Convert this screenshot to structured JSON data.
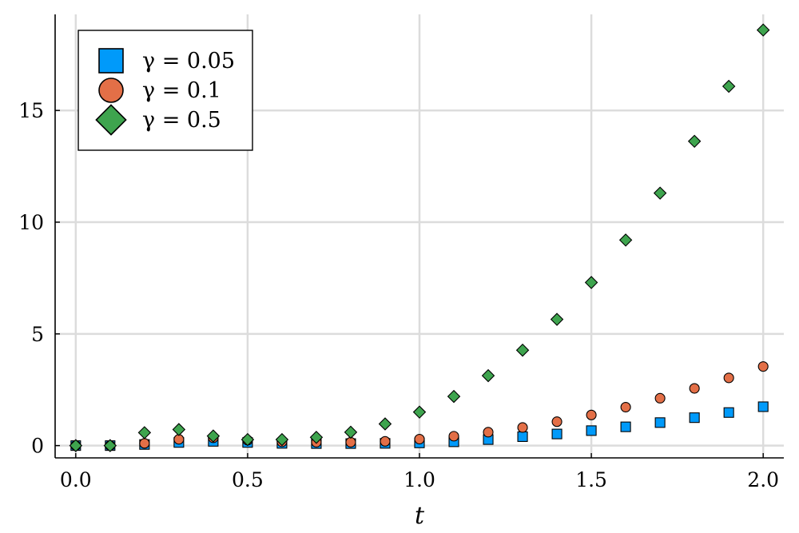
{
  "chart_data": {
    "type": "scatter",
    "title": "",
    "xlabel": "t",
    "ylabel": "",
    "xlim": [
      -0.06,
      2.06
    ],
    "ylim": [
      -0.55,
      19.3
    ],
    "xticks": [
      0.0,
      0.5,
      1.0,
      1.5,
      2.0
    ],
    "xtick_labels": [
      "0.0",
      "0.5",
      "1.0",
      "1.5",
      "2.0"
    ],
    "yticks": [
      0,
      5,
      10,
      15
    ],
    "ytick_labels": [
      "0",
      "5",
      "10",
      "15"
    ],
    "grid": true,
    "legend_position": "top-left",
    "x": [
      0.0,
      0.1,
      0.2,
      0.3,
      0.4,
      0.5,
      0.6,
      0.7,
      0.8,
      0.9,
      1.0,
      1.1,
      1.2,
      1.3,
      1.4,
      1.5,
      1.6,
      1.7,
      1.8,
      1.9,
      2.0
    ],
    "series": [
      {
        "name": "γ = 0.05",
        "marker": "square",
        "color": "#009AFA",
        "values": [
          0.0,
          0.0,
          0.05,
          0.14,
          0.19,
          0.14,
          0.1,
          0.09,
          0.09,
          0.1,
          0.12,
          0.17,
          0.27,
          0.4,
          0.52,
          0.67,
          0.84,
          1.03,
          1.25,
          1.48,
          1.74
        ]
      },
      {
        "name": "γ = 0.1",
        "marker": "circle",
        "color": "#E36F47",
        "values": [
          0.0,
          0.0,
          0.1,
          0.28,
          0.35,
          0.24,
          0.17,
          0.15,
          0.15,
          0.19,
          0.29,
          0.42,
          0.6,
          0.81,
          1.07,
          1.37,
          1.72,
          2.12,
          2.56,
          3.03,
          3.54
        ]
      },
      {
        "name": "γ = 0.5",
        "marker": "diamond",
        "color": "#3EA44E",
        "values": [
          0.0,
          0.0,
          0.58,
          0.72,
          0.43,
          0.27,
          0.27,
          0.37,
          0.6,
          0.97,
          1.5,
          2.2,
          3.13,
          4.27,
          5.65,
          7.3,
          9.2,
          11.3,
          13.62,
          16.08,
          18.6
        ]
      }
    ]
  }
}
